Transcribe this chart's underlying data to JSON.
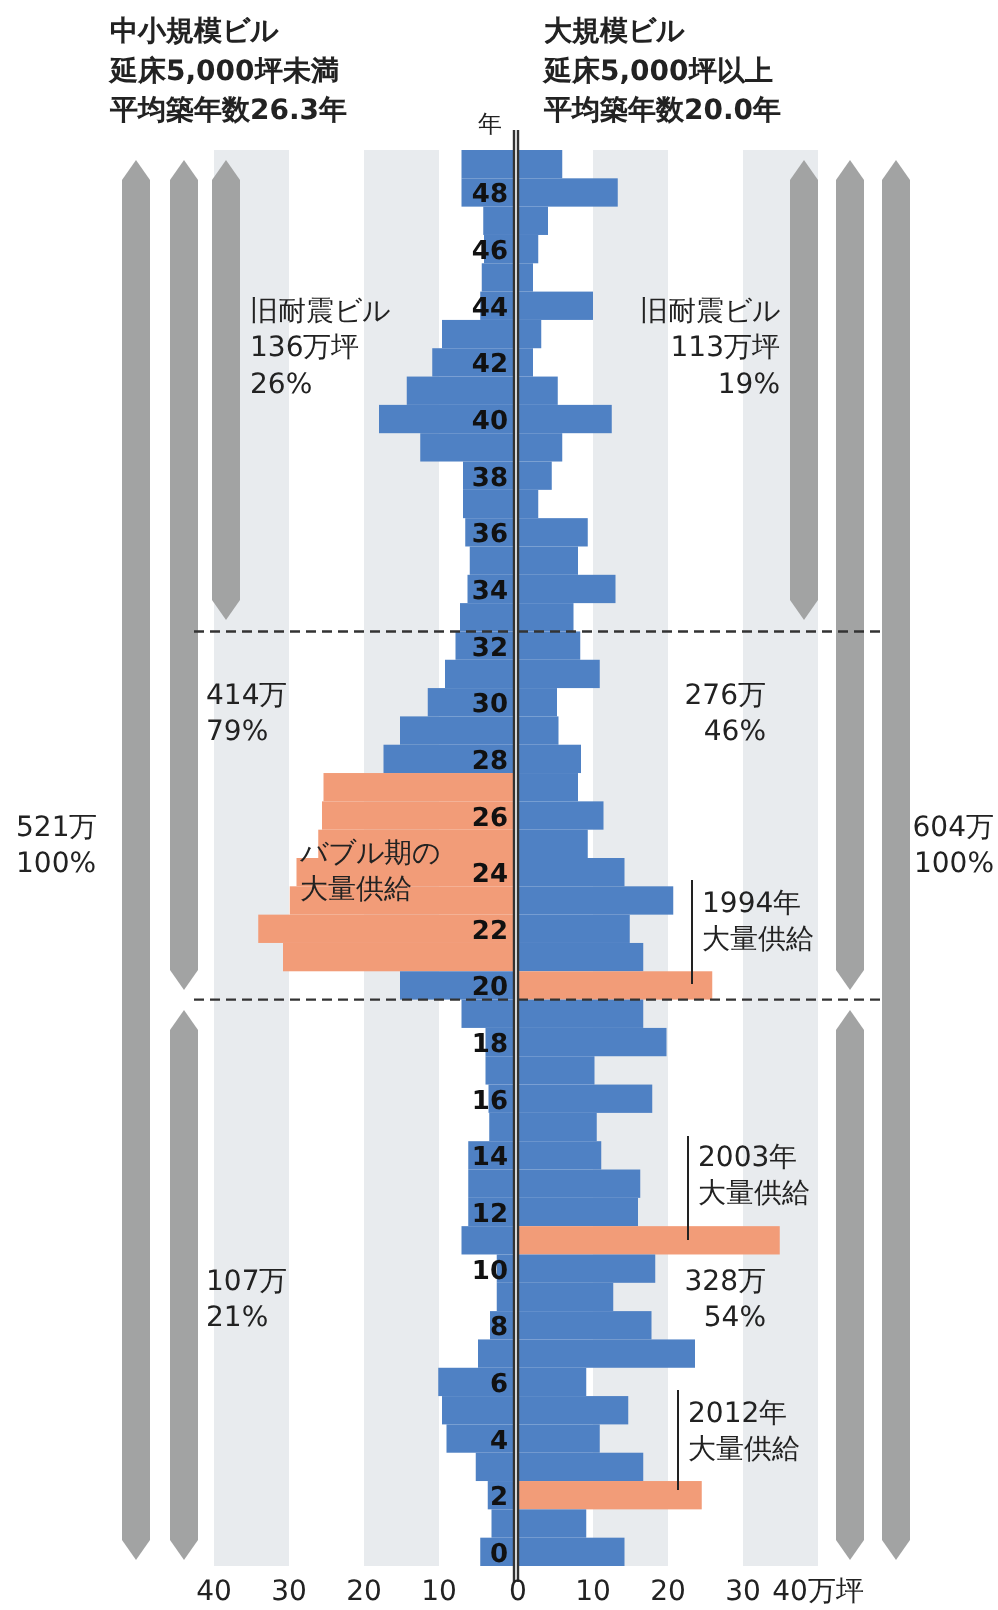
{
  "chart_data": [
    {
      "type": "bar",
      "orientation": "horizontal",
      "title": "中小規模ビル",
      "subtitle": "延床5,000坪未満平均築年数26.3年",
      "ylabel": "年",
      "x": [
        49,
        48,
        47,
        46,
        45,
        44,
        43,
        42,
        41,
        40,
        39,
        38,
        37,
        36,
        35,
        34,
        33,
        32,
        31,
        30,
        29,
        28,
        27,
        26,
        25,
        24,
        23,
        22,
        21,
        20,
        19,
        18,
        17,
        16,
        15,
        14,
        13,
        12,
        11,
        10,
        9,
        8,
        7,
        6,
        5,
        4,
        3,
        2,
        1,
        0
      ],
      "values": [
        7.0,
        7.0,
        4.1,
        4.0,
        4.3,
        4.5,
        9.6,
        10.9,
        14.3,
        18.0,
        12.5,
        6.8,
        6.8,
        6.5,
        5.9,
        6.2,
        7.2,
        7.8,
        9.2,
        11.5,
        15.2,
        17.4,
        25.4,
        25.6,
        26.1,
        29.0,
        29.9,
        34.1,
        30.8,
        15.2,
        7.0,
        3.8,
        3.8,
        3.4,
        3.3,
        6.1,
        6.1,
        6.1,
        7.0,
        2.3,
        2.3,
        3.2,
        4.8,
        10.1,
        9.6,
        9.0,
        5.1,
        3.5,
        3.0,
        4.5
      ],
      "colors": [
        "#4f81c4",
        "#4f81c4",
        "#4f81c4",
        "#4f81c4",
        "#4f81c4",
        "#4f81c4",
        "#4f81c4",
        "#4f81c4",
        "#4f81c4",
        "#4f81c4",
        "#4f81c4",
        "#4f81c4",
        "#4f81c4",
        "#4f81c4",
        "#4f81c4",
        "#4f81c4",
        "#4f81c4",
        "#4f81c4",
        "#4f81c4",
        "#4f81c4",
        "#4f81c4",
        "#4f81c4",
        "#f29c78",
        "#f29c78",
        "#f29c78",
        "#f29c78",
        "#f29c78",
        "#f29c78",
        "#f29c78",
        "#4f81c4",
        "#4f81c4",
        "#4f81c4",
        "#4f81c4",
        "#4f81c4",
        "#4f81c4",
        "#4f81c4",
        "#4f81c4",
        "#4f81c4",
        "#4f81c4",
        "#4f81c4",
        "#4f81c4",
        "#4f81c4",
        "#4f81c4",
        "#4f81c4",
        "#4f81c4",
        "#4f81c4",
        "#4f81c4",
        "#4f81c4",
        "#4f81c4",
        "#4f81c4"
      ],
      "xlim": [
        40,
        0
      ],
      "xticks": [
        40,
        30,
        20,
        10
      ],
      "ylim": [
        -0.5,
        49.5
      ],
      "yticks": [
        0,
        2,
        4,
        6,
        8,
        10,
        12,
        14,
        16,
        18,
        20,
        22,
        24,
        26,
        28,
        30,
        32,
        34,
        36,
        38,
        40,
        42,
        44,
        46,
        48
      ],
      "bands": [
        {
          "axis": "x",
          "from": 10,
          "to": 20,
          "color": "#e8ebee"
        },
        {
          "axis": "x",
          "from": 30,
          "to": 40,
          "color": "#e8ebee"
        }
      ],
      "ref_lines": [
        {
          "axis": "y",
          "value": 32.5,
          "line_style": "dashed",
          "color": "#333333"
        },
        {
          "axis": "y",
          "value": 19.5,
          "line_style": "dashed",
          "color": "#333333"
        }
      ],
      "annotations": [
        "旧耐震ビル\n136万坪\n26%",
        "414万\n79%",
        "107万\n21%",
        "521万\n100%",
        "バブル期の大量供給"
      ]
    },
    {
      "type": "bar",
      "orientation": "horizontal",
      "title": "大規模ビル",
      "subtitle": "延床5,000坪以上平均築年数20.0年",
      "tick_labels": "x",
      "x": [
        49,
        48,
        47,
        46,
        45,
        44,
        43,
        42,
        41,
        40,
        39,
        38,
        37,
        36,
        35,
        34,
        33,
        32,
        31,
        30,
        29,
        28,
        27,
        26,
        25,
        24,
        23,
        22,
        21,
        20,
        19,
        18,
        17,
        16,
        15,
        14,
        13,
        12,
        11,
        10,
        9,
        8,
        7,
        6,
        5,
        4,
        3,
        2,
        1,
        0
      ],
      "values": [
        5.9,
        13.3,
        4.0,
        2.7,
        2.0,
        10.0,
        3.1,
        2.0,
        5.3,
        12.5,
        5.9,
        4.5,
        2.7,
        9.3,
        8.0,
        13.0,
        7.4,
        8.3,
        10.9,
        5.2,
        5.4,
        8.4,
        8.0,
        11.4,
        9.3,
        14.2,
        20.7,
        14.9,
        16.7,
        25.9,
        16.7,
        19.8,
        10.2,
        17.9,
        10.5,
        11.1,
        16.3,
        16.0,
        34.9,
        18.3,
        12.7,
        17.8,
        23.6,
        9.1,
        14.7,
        10.9,
        16.7,
        24.5,
        9.1,
        14.2
      ],
      "colors": [
        "#4f81c4",
        "#4f81c4",
        "#4f81c4",
        "#4f81c4",
        "#4f81c4",
        "#4f81c4",
        "#4f81c4",
        "#4f81c4",
        "#4f81c4",
        "#4f81c4",
        "#4f81c4",
        "#4f81c4",
        "#4f81c4",
        "#4f81c4",
        "#4f81c4",
        "#4f81c4",
        "#4f81c4",
        "#4f81c4",
        "#4f81c4",
        "#4f81c4",
        "#4f81c4",
        "#4f81c4",
        "#4f81c4",
        "#4f81c4",
        "#4f81c4",
        "#4f81c4",
        "#4f81c4",
        "#4f81c4",
        "#4f81c4",
        "#f29c78",
        "#4f81c4",
        "#4f81c4",
        "#4f81c4",
        "#4f81c4",
        "#4f81c4",
        "#4f81c4",
        "#4f81c4",
        "#4f81c4",
        "#f29c78",
        "#4f81c4",
        "#4f81c4",
        "#4f81c4",
        "#4f81c4",
        "#4f81c4",
        "#4f81c4",
        "#4f81c4",
        "#4f81c4",
        "#f29c78",
        "#4f81c4",
        "#4f81c4"
      ],
      "xlim": [
        0,
        40
      ],
      "xticks": [
        0,
        10,
        20,
        30,
        {
          "value": 40,
          "label": "40万坪"
        }
      ],
      "ylim": [
        -0.5,
        49.5
      ],
      "bands": [
        {
          "axis": "x",
          "from": 10,
          "to": 20,
          "color": "#e8ebee"
        },
        {
          "axis": "x",
          "from": 30,
          "to": 40,
          "color": "#e8ebee"
        }
      ],
      "ref_lines": [
        {
          "axis": "y",
          "value": 32.5,
          "line_style": "dashed",
          "color": "#333333"
        },
        {
          "axis": "y",
          "value": 19.5,
          "line_style": "dashed",
          "color": "#333333"
        }
      ],
      "annotations": [
        "旧耐震ビル\n113万坪\n19%",
        "276万\n46%",
        "328万\n54%",
        "604万\n100%",
        "1994年大量供給",
        "2003年大量供給",
        "2012年大量供給"
      ]
    }
  ]
}
